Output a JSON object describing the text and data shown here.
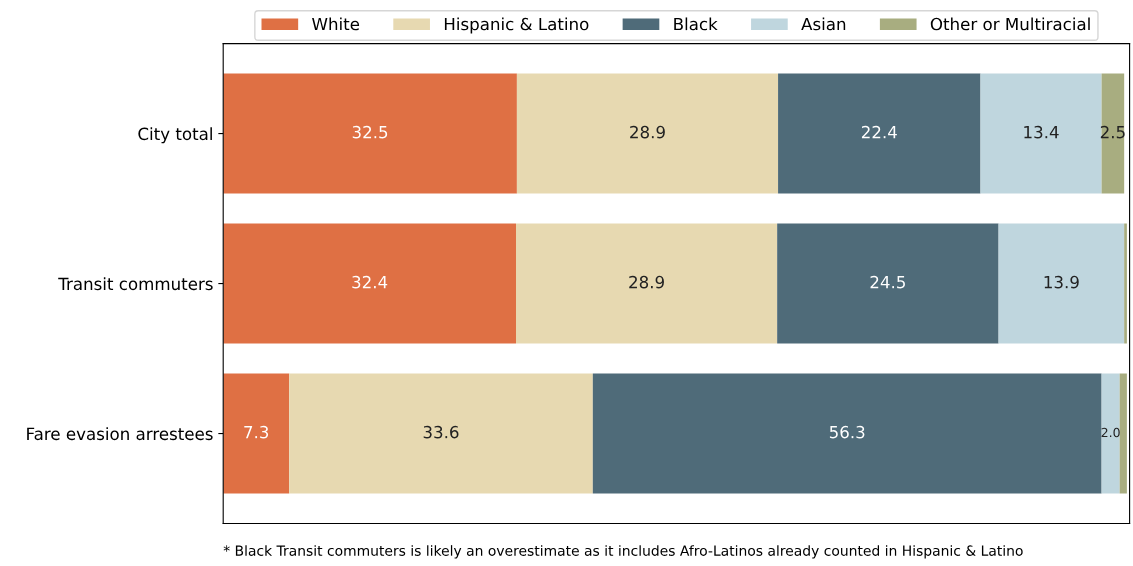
{
  "chart_data": {
    "type": "bar",
    "orientation": "horizontal",
    "stacked": true,
    "categories": [
      "City total",
      "Transit commuters",
      "Fare evasion arrestees"
    ],
    "series": [
      {
        "name": "White",
        "color": "#df7044",
        "values": [
          32.5,
          32.4,
          7.3
        ],
        "value_labels": [
          "32.5",
          "32.4",
          "7.3"
        ]
      },
      {
        "name": "Hispanic & Latino",
        "color": "#e7d9b1",
        "values": [
          28.9,
          28.9,
          33.6
        ],
        "value_labels": [
          "28.9",
          "28.9",
          "33.6"
        ]
      },
      {
        "name": "Black",
        "color": "#4f6b79",
        "values": [
          22.4,
          24.5,
          56.3
        ],
        "value_labels": [
          "22.4",
          "24.5",
          "56.3"
        ]
      },
      {
        "name": "Asian",
        "color": "#bfd6de",
        "values": [
          13.4,
          13.9,
          2.0
        ],
        "value_labels": [
          "13.4",
          "13.9",
          "2.0"
        ]
      },
      {
        "name": "Other or Multiracial",
        "color": "#a8ad80",
        "values": [
          2.5,
          0.3,
          0.8
        ],
        "value_labels": [
          "2.5",
          null,
          null
        ]
      }
    ],
    "xlim": [
      0,
      100.3
    ],
    "tick_labels": "y",
    "grid": false,
    "legend": "top",
    "annotations": [
      "* Black Transit commuters is likely an overestimate as it includes Afro-Latinos already counted in Hispanic & Latino"
    ]
  }
}
